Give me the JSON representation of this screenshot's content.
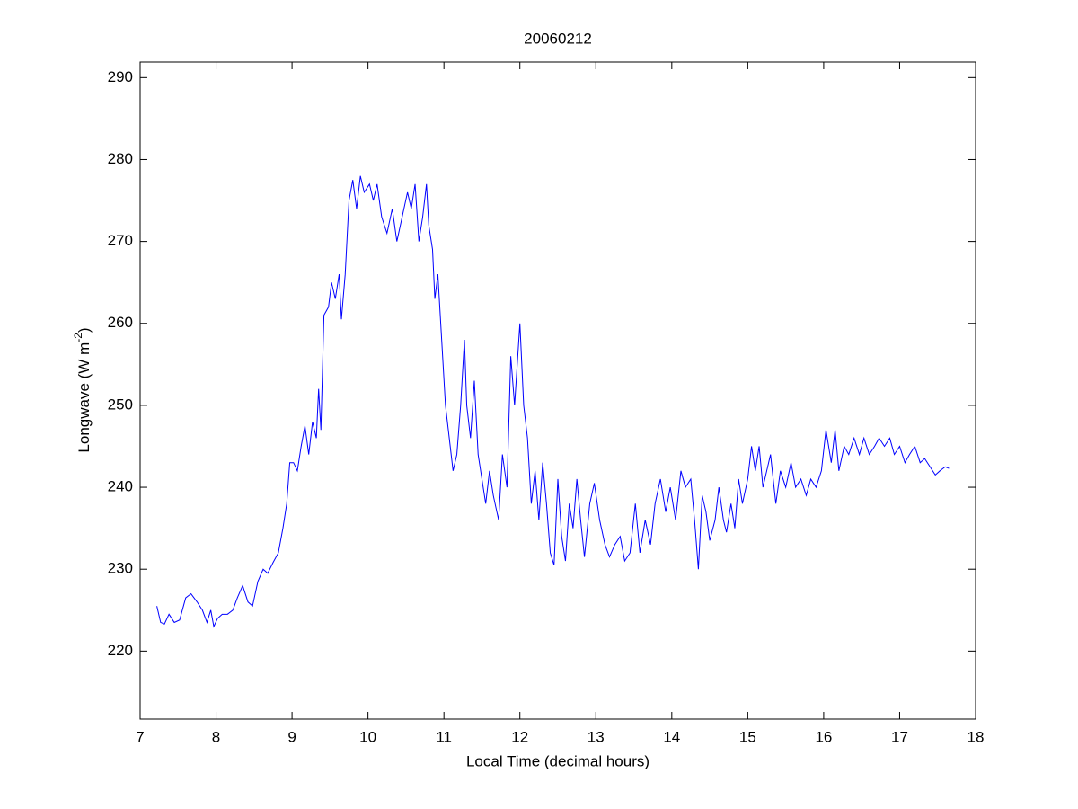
{
  "chart_data": {
    "type": "line",
    "title": "20060212",
    "xlabel": "Local Time (decimal hours)",
    "ylabel_parts": [
      "Longwave (W m",
      "-2",
      ")"
    ],
    "xlim": [
      7,
      18
    ],
    "xticks": [
      7,
      8,
      9,
      10,
      11,
      12,
      13,
      14,
      15,
      16,
      17,
      18
    ],
    "ylim": [
      211.7,
      291.9
    ],
    "yticks": [
      220,
      230,
      240,
      250,
      260,
      270,
      280,
      290
    ],
    "grid": false,
    "series": [
      {
        "color": "#0000ff",
        "x": [
          7.22,
          7.27,
          7.32,
          7.38,
          7.45,
          7.52,
          7.6,
          7.67,
          7.75,
          7.82,
          7.88,
          7.93,
          7.97,
          8.02,
          8.08,
          8.15,
          8.22,
          8.28,
          8.35,
          8.42,
          8.48,
          8.55,
          8.62,
          8.68,
          8.75,
          8.82,
          8.88,
          8.93,
          8.97,
          9.02,
          9.07,
          9.12,
          9.17,
          9.22,
          9.27,
          9.32,
          9.35,
          9.38,
          9.4,
          9.42,
          9.48,
          9.52,
          9.57,
          9.62,
          9.65,
          9.7,
          9.75,
          9.8,
          9.85,
          9.9,
          9.95,
          10.02,
          10.07,
          10.12,
          10.18,
          10.25,
          10.32,
          10.38,
          10.45,
          10.52,
          10.57,
          10.62,
          10.67,
          10.72,
          10.77,
          10.8,
          10.85,
          10.88,
          10.92,
          10.97,
          11.02,
          11.07,
          11.12,
          11.17,
          11.22,
          11.27,
          11.3,
          11.35,
          11.4,
          11.45,
          11.5,
          11.55,
          11.6,
          11.65,
          11.72,
          11.77,
          11.83,
          11.88,
          11.93,
          12.0,
          12.05,
          12.1,
          12.15,
          12.2,
          12.25,
          12.3,
          12.35,
          12.4,
          12.45,
          12.5,
          12.55,
          12.6,
          12.65,
          12.7,
          12.75,
          12.8,
          12.85,
          12.92,
          12.98,
          13.05,
          13.12,
          13.18,
          13.25,
          13.32,
          13.38,
          13.45,
          13.52,
          13.58,
          13.65,
          13.72,
          13.78,
          13.85,
          13.92,
          13.98,
          14.05,
          14.12,
          14.18,
          14.25,
          14.3,
          14.35,
          14.4,
          14.45,
          14.5,
          14.57,
          14.62,
          14.68,
          14.72,
          14.78,
          14.83,
          14.88,
          14.93,
          15.0,
          15.05,
          15.1,
          15.15,
          15.2,
          15.25,
          15.3,
          15.37,
          15.43,
          15.5,
          15.57,
          15.63,
          15.7,
          15.77,
          15.83,
          15.9,
          15.97,
          16.03,
          16.1,
          16.15,
          16.2,
          16.27,
          16.33,
          16.4,
          16.47,
          16.53,
          16.6,
          16.67,
          16.73,
          16.8,
          16.87,
          16.93,
          17.0,
          17.07,
          17.13,
          17.2,
          17.27,
          17.33,
          17.4,
          17.47,
          17.53,
          17.6,
          17.65
        ],
        "values": [
          225.5,
          223.5,
          223.3,
          224.5,
          223.5,
          223.8,
          226.5,
          227,
          226,
          225,
          223.5,
          225,
          223,
          224,
          224.5,
          224.5,
          225,
          226.5,
          228,
          226,
          225.5,
          228.5,
          230,
          229.5,
          230.8,
          232,
          235,
          238,
          243,
          243,
          242,
          245,
          247.5,
          244,
          248,
          246,
          252,
          247,
          254,
          261,
          262,
          265,
          263,
          266,
          260.5,
          266,
          275,
          277.5,
          274,
          278,
          276,
          277,
          275,
          277,
          273,
          271,
          274,
          270,
          273,
          276,
          274,
          277,
          270,
          273,
          277,
          272,
          269,
          263,
          266,
          258,
          250,
          246,
          242,
          244,
          250,
          258,
          250,
          246,
          253,
          244,
          241,
          238,
          242,
          239,
          236,
          244,
          240,
          256,
          250,
          260,
          250,
          246,
          238,
          242,
          236,
          243,
          238,
          232,
          230.5,
          241,
          234,
          231,
          238,
          235,
          241,
          236,
          231.5,
          238,
          240.5,
          236,
          233,
          231.5,
          233,
          234,
          231,
          232,
          238,
          232,
          236,
          233,
          238,
          241,
          237,
          240,
          236,
          242,
          240,
          241,
          236,
          230,
          239,
          237,
          233.5,
          236,
          240,
          236,
          234.5,
          238,
          235,
          241,
          238,
          241,
          245,
          242,
          245,
          240,
          242,
          244,
          238,
          242,
          240,
          243,
          240,
          241,
          239,
          241,
          240,
          242,
          247,
          243,
          247,
          242,
          245,
          244,
          246,
          244,
          246,
          244,
          245,
          246,
          245,
          246,
          244,
          245,
          243,
          244,
          245,
          243,
          243.5,
          242.5,
          241.5,
          242,
          242.5,
          242.3
        ]
      }
    ]
  }
}
